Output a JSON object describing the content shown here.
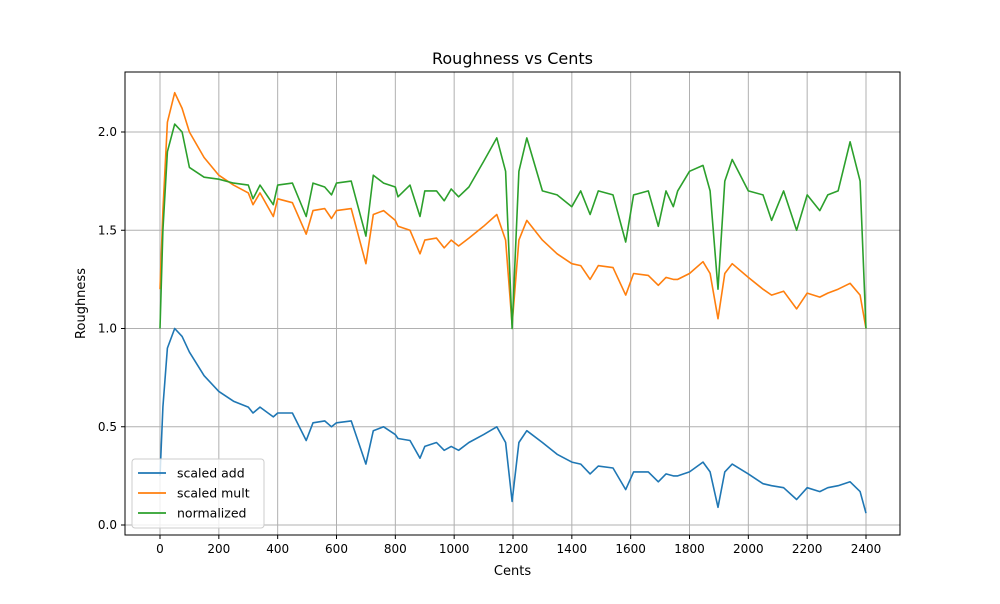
{
  "chart_data": {
    "type": "line",
    "title": "Roughness vs Cents",
    "xlabel": "Cents",
    "ylabel": "Roughness",
    "xlim": [
      -120,
      2520
    ],
    "ylim": [
      -0.03,
      2.3
    ],
    "xticks": [
      0,
      200,
      400,
      600,
      800,
      1000,
      1200,
      1400,
      1600,
      1800,
      2000,
      2200,
      2400
    ],
    "xtick_labels": [
      "0",
      "200",
      "400",
      "600",
      "800",
      "1000",
      "1200",
      "1400",
      "1600",
      "1800",
      "2000",
      "2200",
      "2400"
    ],
    "yticks": [
      0,
      0.5,
      1.0,
      1.5,
      2.0
    ],
    "ytick_labels": [
      "0.0",
      "0.5",
      "1.0",
      "1.5",
      "2.0"
    ],
    "grid": true,
    "legend_position": "lower-left",
    "x": [
      0,
      10,
      25,
      50,
      75,
      100,
      150,
      200,
      250,
      300,
      316,
      340,
      385,
      400,
      450,
      497,
      520,
      560,
      583,
      600,
      650,
      700,
      725,
      760,
      800,
      809,
      850,
      884,
      900,
      940,
      966,
      990,
      1015,
      1050,
      1100,
      1145,
      1175,
      1197,
      1220,
      1247,
      1300,
      1350,
      1400,
      1430,
      1462,
      1490,
      1540,
      1583,
      1610,
      1660,
      1694,
      1720,
      1745,
      1760,
      1800,
      1846,
      1870,
      1897,
      1920,
      1945,
      2000,
      2050,
      2079,
      2120,
      2164,
      2200,
      2243,
      2270,
      2305,
      2346,
      2380,
      2400
    ],
    "series": [
      {
        "name": "scaled add",
        "color": "#1f77b4",
        "values": [
          0.25,
          0.6,
          0.9,
          1.0,
          0.96,
          0.88,
          0.76,
          0.68,
          0.63,
          0.6,
          0.57,
          0.6,
          0.55,
          0.57,
          0.57,
          0.43,
          0.52,
          0.53,
          0.5,
          0.52,
          0.53,
          0.31,
          0.48,
          0.5,
          0.46,
          0.44,
          0.43,
          0.34,
          0.4,
          0.42,
          0.38,
          0.4,
          0.38,
          0.42,
          0.46,
          0.5,
          0.42,
          0.12,
          0.42,
          0.48,
          0.42,
          0.36,
          0.32,
          0.31,
          0.26,
          0.3,
          0.29,
          0.18,
          0.27,
          0.27,
          0.22,
          0.26,
          0.25,
          0.25,
          0.27,
          0.32,
          0.27,
          0.09,
          0.27,
          0.31,
          0.26,
          0.21,
          0.2,
          0.19,
          0.13,
          0.19,
          0.17,
          0.19,
          0.2,
          0.22,
          0.17,
          0.06
        ]
      },
      {
        "name": "scaled mult",
        "color": "#ff7f0e",
        "values": [
          1.2,
          1.6,
          2.05,
          2.2,
          2.12,
          2.0,
          1.87,
          1.78,
          1.73,
          1.69,
          1.63,
          1.69,
          1.57,
          1.66,
          1.64,
          1.48,
          1.6,
          1.61,
          1.56,
          1.6,
          1.61,
          1.33,
          1.58,
          1.6,
          1.55,
          1.52,
          1.5,
          1.38,
          1.45,
          1.46,
          1.41,
          1.45,
          1.42,
          1.46,
          1.52,
          1.58,
          1.45,
          1.02,
          1.45,
          1.55,
          1.45,
          1.38,
          1.33,
          1.32,
          1.25,
          1.32,
          1.31,
          1.17,
          1.28,
          1.27,
          1.22,
          1.26,
          1.25,
          1.25,
          1.28,
          1.34,
          1.28,
          1.05,
          1.28,
          1.33,
          1.26,
          1.2,
          1.17,
          1.19,
          1.1,
          1.18,
          1.16,
          1.18,
          1.2,
          1.23,
          1.17,
          1.0
        ]
      },
      {
        "name": "normalized",
        "color": "#2ca02c",
        "values": [
          1.0,
          1.5,
          1.9,
          2.04,
          2.0,
          1.82,
          1.77,
          1.76,
          1.74,
          1.73,
          1.66,
          1.73,
          1.63,
          1.73,
          1.74,
          1.57,
          1.74,
          1.72,
          1.68,
          1.74,
          1.75,
          1.47,
          1.78,
          1.74,
          1.72,
          1.67,
          1.73,
          1.57,
          1.7,
          1.7,
          1.65,
          1.71,
          1.67,
          1.72,
          1.85,
          1.97,
          1.8,
          1.0,
          1.8,
          1.97,
          1.7,
          1.68,
          1.62,
          1.7,
          1.58,
          1.7,
          1.68,
          1.44,
          1.68,
          1.7,
          1.52,
          1.7,
          1.62,
          1.7,
          1.8,
          1.83,
          1.7,
          1.2,
          1.75,
          1.86,
          1.7,
          1.68,
          1.55,
          1.7,
          1.5,
          1.68,
          1.6,
          1.68,
          1.7,
          1.95,
          1.75,
          1.0
        ]
      }
    ]
  }
}
